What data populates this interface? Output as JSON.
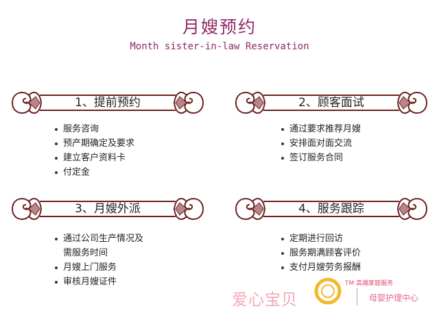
{
  "header": {
    "title": "月嫂预约",
    "subtitle": "Month sister-in-law Reservation"
  },
  "steps": [
    {
      "label": "1、提前预约",
      "items": [
        "服务咨询",
        "预产期确定及要求",
        "建立客户资料卡",
        "付定金"
      ]
    },
    {
      "label": "2、顾客面试",
      "items": [
        "通过要求推荐月嫂",
        "安排面对面交流",
        "签订服务合同"
      ]
    },
    {
      "label": "3、月嫂外派",
      "items": [
        "通过公司生产情况及",
        "需服务时间",
        "月嫂上门服务",
        "审核月嫂证件"
      ]
    },
    {
      "label": "4、服务跟踪",
      "items": [
        "定期进行回访",
        "服务期满顾客评价",
        "支付月嫂劳务报酬"
      ]
    }
  ],
  "watermark": {
    "brand": "爱心宝贝",
    "tm_text": "TM 高端家庭服务",
    "service": "母婴护理中心"
  },
  "colors": {
    "title": "#8f2a66",
    "ornament": "#6b1f1f",
    "ornament_fill": "#b8868a",
    "brand": "#f0a8b6",
    "logo_ring": "#f3b92a"
  }
}
